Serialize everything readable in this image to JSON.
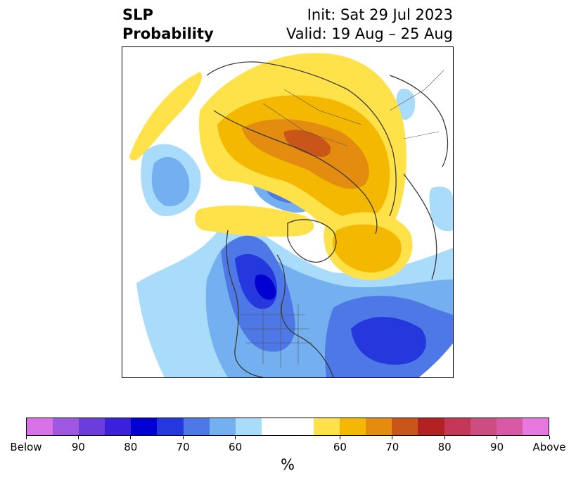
{
  "header": {
    "title_line1": "SLP",
    "title_line2": "Probability",
    "init": "Init: Sat 29 Jul 2023",
    "valid": "Valid: 19 Aug – 25 Aug"
  },
  "colorbar": {
    "colors": [
      "#d872e6",
      "#9f56e0",
      "#6b3ddb",
      "#3b22d8",
      "#0000d0",
      "#2538dd",
      "#4d78e5",
      "#74b0f0",
      "#a9dcfa",
      "#ffffff",
      "#ffffff",
      "#ffe14a",
      "#f4b800",
      "#e38c10",
      "#c95518",
      "#b22222",
      "#c43757",
      "#cc4d7f",
      "#d85aa4",
      "#e678e0"
    ],
    "tick_labels": [
      "Below",
      "90",
      "80",
      "70",
      "60",
      "60",
      "70",
      "80",
      "90",
      "Above"
    ],
    "unit": "%"
  },
  "legend_palette": {
    "below_light": "#a9dcfa",
    "below_mid": "#74b0f0",
    "below_med": "#4d78e5",
    "below_strong": "#2538dd",
    "below_max": "#0000d0",
    "above_light": "#ffe14a",
    "above_mid": "#f4b800",
    "above_med": "#e38c10",
    "above_strong": "#c95518"
  }
}
